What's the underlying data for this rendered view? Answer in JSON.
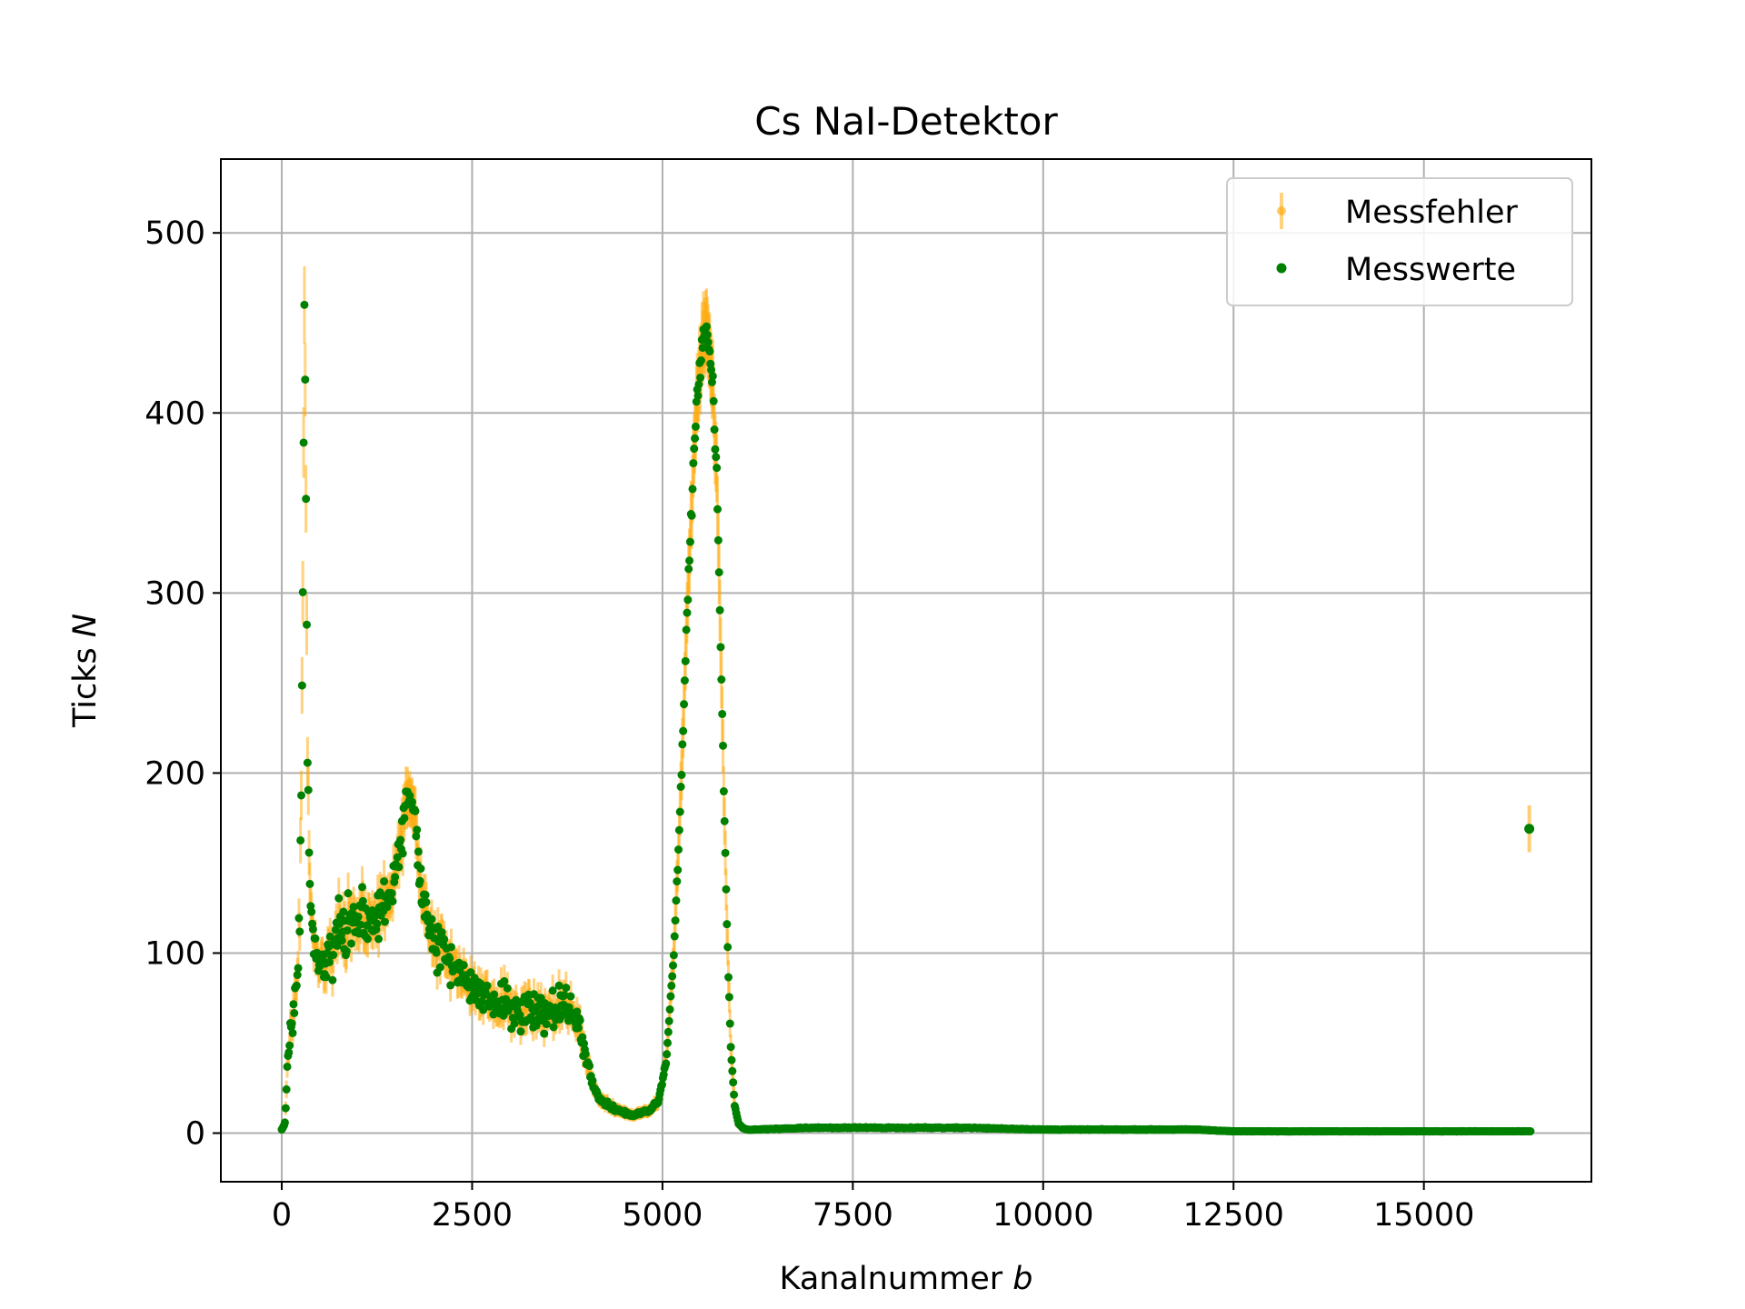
{
  "chart_data": {
    "type": "scatter",
    "title": "Cs NaI-Detektor",
    "xlabel": "Kanalnummer",
    "xlabel_var": "b",
    "ylabel": "Ticks",
    "ylabel_var": "N",
    "xlim": [
      -800,
      17200
    ],
    "ylim": [
      -27,
      541
    ],
    "x_ticks": [
      0,
      2500,
      5000,
      7500,
      10000,
      12500,
      15000
    ],
    "x_tick_labels": [
      "0",
      "2500",
      "5000",
      "7500",
      "10000",
      "12500",
      "15000"
    ],
    "y_ticks": [
      0,
      100,
      200,
      300,
      400,
      500
    ],
    "y_tick_labels": [
      "0",
      "100",
      "200",
      "300",
      "400",
      "500"
    ],
    "grid": true,
    "legend_position": "top-right",
    "series": [
      {
        "name": "Messfehler",
        "kind": "errorbar",
        "color": "#ffa500",
        "error": "sqrt(N)"
      },
      {
        "name": "Messwerte",
        "kind": "points",
        "color": "#008000"
      }
    ],
    "profile": {
      "x": [
        0,
        40,
        70,
        100,
        150,
        200,
        240,
        270,
        290,
        300,
        310,
        320,
        340,
        370,
        400,
        450,
        500,
        600,
        700,
        800,
        900,
        1000,
        1100,
        1200,
        1300,
        1400,
        1500,
        1600,
        1650,
        1700,
        1750,
        1800,
        1850,
        1900,
        2000,
        2200,
        2400,
        2600,
        2800,
        3000,
        3200,
        3400,
        3600,
        3800,
        3900,
        4000,
        4100,
        4200,
        4400,
        4600,
        4800,
        4950,
        5050,
        5150,
        5250,
        5350,
        5450,
        5550,
        5600,
        5650,
        5700,
        5750,
        5800,
        5850,
        5900,
        5950,
        6000,
        6050,
        6100,
        6150,
        6200,
        7000,
        8000,
        9000,
        10000,
        11000,
        12000,
        12500,
        13000,
        14000,
        15000,
        16000,
        16400
      ],
      "y": [
        2,
        5,
        30,
        55,
        70,
        85,
        120,
        250,
        400,
        470,
        420,
        320,
        200,
        140,
        110,
        95,
        90,
        95,
        105,
        115,
        118,
        120,
        118,
        117,
        122,
        130,
        145,
        170,
        185,
        190,
        175,
        150,
        130,
        120,
        105,
        95,
        85,
        78,
        72,
        70,
        68,
        68,
        70,
        70,
        60,
        40,
        25,
        18,
        13,
        10,
        12,
        18,
        40,
        100,
        200,
        320,
        410,
        445,
        440,
        420,
        380,
        300,
        200,
        110,
        45,
        15,
        5,
        3,
        2,
        2,
        2,
        3,
        3,
        3,
        2,
        2,
        2,
        1,
        1,
        1,
        1,
        1,
        1
      ],
      "sigma_frac": [
        0,
        0.1,
        0.15,
        0.15,
        0.15,
        0.15,
        0.12,
        0.06,
        0.04,
        0.03,
        0.04,
        0.05,
        0.06,
        0.1,
        0.12,
        0.13,
        0.14,
        0.14,
        0.14,
        0.14,
        0.14,
        0.13,
        0.13,
        0.12,
        0.12,
        0.1,
        0.09,
        0.07,
        0.06,
        0.06,
        0.06,
        0.08,
        0.1,
        0.12,
        0.13,
        0.13,
        0.13,
        0.14,
        0.15,
        0.16,
        0.17,
        0.17,
        0.16,
        0.15,
        0.14,
        0.12,
        0.1,
        0.1,
        0.1,
        0.1,
        0.1,
        0.06,
        0.03,
        0.02,
        0.02,
        0.02,
        0.02,
        0.02,
        0.02,
        0.02,
        0.02,
        0.02,
        0.03,
        0.03,
        0.03,
        0.05,
        0.1,
        0.1,
        0.1,
        0.1,
        0.1,
        0.1,
        0.1,
        0.1,
        0.1,
        0.1,
        0.1,
        0.1,
        0.1,
        0.1,
        0.1,
        0.1,
        0.1
      ]
    },
    "outlier": {
      "x": 16384,
      "y": 169
    }
  }
}
